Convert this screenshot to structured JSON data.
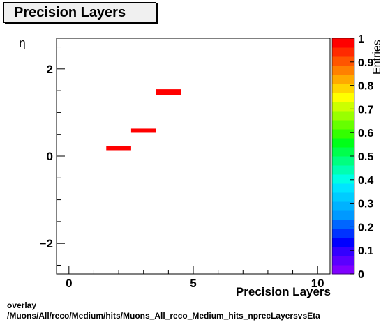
{
  "title": "Precision Layers",
  "chart_data": {
    "type": "heatmap",
    "xlabel": "Precision Layers",
    "ylabel": "η",
    "zlabel": "Entries",
    "xlim": [
      -0.5,
      10.5
    ],
    "ylim": [
      -2.7,
      2.7
    ],
    "zlim": [
      0,
      1
    ],
    "x_ticks": [
      0,
      5,
      10
    ],
    "y_ticks": [
      -2,
      0,
      2
    ],
    "z_ticks": [
      0,
      0.1,
      0.2,
      0.3,
      0.4,
      0.5,
      0.6,
      0.7,
      0.8,
      0.9,
      1
    ],
    "bins": [
      {
        "x": [
          1.5,
          2.5
        ],
        "y": [
          0.15,
          0.2
        ],
        "value": 1
      },
      {
        "x": [
          2.5,
          3.5
        ],
        "y": [
          0.55,
          0.6
        ],
        "value": 1
      },
      {
        "x": [
          3.5,
          4.5
        ],
        "y": [
          1.4,
          1.5
        ],
        "value": 1
      }
    ],
    "colormap": [
      "#7f00ff",
      "#5a00ff",
      "#3300ff",
      "#0000ff",
      "#0033ff",
      "#0066ff",
      "#0099ff",
      "#00b2ff",
      "#00ccff",
      "#00e5ff",
      "#00ffe5",
      "#00ffb2",
      "#00ff80",
      "#00ff4c",
      "#00ff19",
      "#33ff00",
      "#66ff00",
      "#99ff00",
      "#ccff00",
      "#ffff00",
      "#ffd500",
      "#ffaa00",
      "#ff8000",
      "#ff5500",
      "#ff2a00",
      "#ff0000"
    ]
  },
  "footer": {
    "line1": "overlay",
    "line2": "/Muons/All/reco/Medium/hits/Muons_All_reco_Medium_hits_nprecLayersvsEta"
  }
}
